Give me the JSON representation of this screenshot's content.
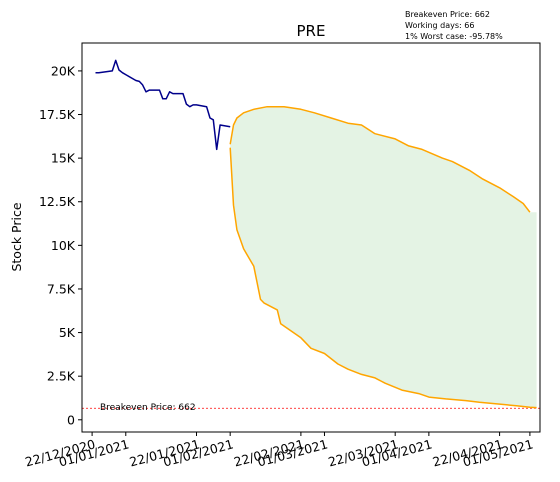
{
  "chart_data": {
    "type": "line",
    "title": "PRE",
    "ylabel": "Stock Price",
    "xlabel": "",
    "grid": false,
    "ylim": [
      -700,
      21600
    ],
    "xlim": [
      "2020-12-19",
      "2021-05-04"
    ],
    "yticks": [
      0,
      2500,
      5000,
      7500,
      10000,
      12500,
      15000,
      17500,
      20000
    ],
    "ytick_labels": [
      "0",
      "2.5K",
      "5K",
      "7.5K",
      "10K",
      "12.5K",
      "15K",
      "17.5K",
      "20K"
    ],
    "xticks": [
      "2020-12-22",
      "2021-01-01",
      "2021-01-22",
      "2021-02-01",
      "2021-02-22",
      "2021-03-01",
      "2021-03-22",
      "2021-04-01",
      "2021-04-22",
      "2021-05-01"
    ],
    "xtick_labels": [
      "22/12/2020",
      "01/01/2021",
      "22/01/2021",
      "01/02/2021",
      "22/02/2021",
      "01/03/2021",
      "22/03/2021",
      "01/04/2021",
      "22/04/2021",
      "01/05/2021"
    ],
    "info_lines": [
      "Breakeven Price: 662",
      "Working days: 66",
      "1% Worst case: -95.78%"
    ],
    "breakeven": {
      "value": 662,
      "label": "Breakeven Price: 662",
      "color": "#ff0000"
    },
    "colors": {
      "history": "#00008b",
      "bounds": "#ffa500",
      "fill": "#2ca02c"
    },
    "history": {
      "x": [
        "2020-12-23",
        "2020-12-24",
        "2020-12-28",
        "2020-12-29",
        "2020-12-30",
        "2020-12-31",
        "2021-01-04",
        "2021-01-05",
        "2021-01-06",
        "2021-01-07",
        "2021-01-08",
        "2021-01-11",
        "2021-01-12",
        "2021-01-13",
        "2021-01-14",
        "2021-01-15",
        "2021-01-18",
        "2021-01-19",
        "2021-01-20",
        "2021-01-21",
        "2021-01-22",
        "2021-01-25",
        "2021-01-26",
        "2021-01-27",
        "2021-01-28",
        "2021-01-29",
        "2021-02-01"
      ],
      "y": [
        19900,
        19900,
        20000,
        20600,
        20050,
        19900,
        19450,
        19400,
        19200,
        18800,
        18900,
        18900,
        18400,
        18400,
        18800,
        18700,
        18700,
        18100,
        17950,
        18050,
        18050,
        17950,
        17300,
        17200,
        15500,
        16900,
        16800
      ]
    },
    "upper": {
      "x": [
        "2021-02-01",
        "2021-02-02",
        "2021-02-03",
        "2021-02-05",
        "2021-02-08",
        "2021-02-12",
        "2021-02-17",
        "2021-02-22",
        "2021-02-26",
        "2021-03-03",
        "2021-03-08",
        "2021-03-12",
        "2021-03-16",
        "2021-03-22",
        "2021-03-26",
        "2021-03-30",
        "2021-04-05",
        "2021-04-08",
        "2021-04-13",
        "2021-04-17",
        "2021-04-22",
        "2021-04-26",
        "2021-04-29",
        "2021-05-01"
      ],
      "y": [
        15800,
        16900,
        17300,
        17600,
        17800,
        17950,
        17950,
        17800,
        17600,
        17300,
        17000,
        16900,
        16400,
        16100,
        15700,
        15500,
        15000,
        14800,
        14300,
        13800,
        13300,
        12800,
        12400,
        11900
      ]
    },
    "lower": {
      "x": [
        "2021-02-01",
        "2021-02-02",
        "2021-02-03",
        "2021-02-05",
        "2021-02-08",
        "2021-02-10",
        "2021-02-11",
        "2021-02-15",
        "2021-02-16",
        "2021-02-22",
        "2021-02-25",
        "2021-03-01",
        "2021-03-05",
        "2021-03-08",
        "2021-03-12",
        "2021-03-16",
        "2021-03-19",
        "2021-03-24",
        "2021-03-29",
        "2021-04-01",
        "2021-04-06",
        "2021-04-12",
        "2021-04-16",
        "2021-04-22",
        "2021-04-27",
        "2021-05-01",
        "2021-05-03"
      ],
      "y": [
        15600,
        12300,
        10900,
        9800,
        8800,
        6900,
        6700,
        6300,
        5500,
        4700,
        4100,
        3800,
        3200,
        2900,
        2600,
        2400,
        2100,
        1700,
        1500,
        1300,
        1200,
        1100,
        1000,
        900,
        800,
        720,
        700
      ]
    }
  }
}
